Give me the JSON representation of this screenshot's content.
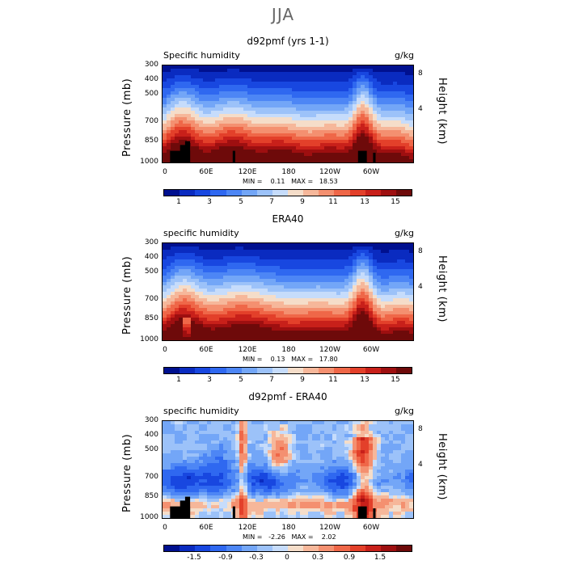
{
  "page_title": "JJA",
  "colors": {
    "palette": [
      "#00108f",
      "#0a2bc0",
      "#1847e0",
      "#2f68f0",
      "#4d86f5",
      "#73a6f7",
      "#9cc2f9",
      "#c6dcfb",
      "#f5ddc9",
      "#f6b79a",
      "#f49070",
      "#ef6748",
      "#e3402a",
      "#c8201a",
      "#9e0f10",
      "#6e0a0a"
    ],
    "land_mask": "#000000"
  },
  "chart_data": [
    {
      "type": "heatmap",
      "title": "d92pmf (yrs 1-1)",
      "variable": "Specific humidity",
      "units": "g/kg",
      "ylabel": "Pressure (mb)",
      "ylabel_right": "Height (km)",
      "yticks": [
        "300",
        "400",
        "500",
        "700",
        "850",
        "1000"
      ],
      "yticks_right": [
        "8",
        "4"
      ],
      "xticks": [
        "0",
        "60E",
        "120E",
        "180",
        "120W",
        "60W"
      ],
      "min_max": "MIN =    0.11   MAX =   18.53",
      "levels": [
        1,
        2,
        3,
        4,
        5,
        6,
        7,
        8,
        9,
        10,
        11,
        12,
        13,
        14,
        15
      ],
      "colorbar_labels": [
        "1",
        "3",
        "5",
        "7",
        "9",
        "11",
        "13",
        "15"
      ]
    },
    {
      "type": "heatmap",
      "title": "ERA40",
      "variable": "specific humidity",
      "units": "g/kg",
      "ylabel": "Pressure (mb)",
      "ylabel_right": "Height (km)",
      "yticks": [
        "300",
        "400",
        "500",
        "700",
        "850",
        "1000"
      ],
      "yticks_right": [
        "8",
        "4"
      ],
      "xticks": [
        "0",
        "60E",
        "120E",
        "180",
        "120W",
        "60W"
      ],
      "min_max": "MIN =    0.13   MAX =   17.80",
      "levels": [
        1,
        2,
        3,
        4,
        5,
        6,
        7,
        8,
        9,
        10,
        11,
        12,
        13,
        14,
        15
      ],
      "colorbar_labels": [
        "1",
        "3",
        "5",
        "7",
        "9",
        "11",
        "13",
        "15"
      ]
    },
    {
      "type": "heatmap",
      "title": "d92pmf - ERA40",
      "variable": "specific humidity",
      "units": "g/kg",
      "ylabel": "Pressure (mb)",
      "ylabel_right": "Height (km)",
      "yticks": [
        "300",
        "400",
        "500",
        "700",
        "850",
        "1000"
      ],
      "yticks_right": [
        "8",
        "4"
      ],
      "xticks": [
        "0",
        "60E",
        "120E",
        "180",
        "120W",
        "60W"
      ],
      "min_max": "MIN =   -2.26   MAX =    2.02",
      "levels": [
        -1.8,
        -1.5,
        -1.2,
        -0.9,
        -0.6,
        -0.3,
        -0.1,
        0,
        0.1,
        0.3,
        0.6,
        0.9,
        1.2,
        1.5,
        1.8
      ],
      "colorbar_labels": [
        "-1.5",
        "-0.9",
        "-0.3",
        "0",
        "0.3",
        "0.9",
        "1.5"
      ]
    }
  ]
}
